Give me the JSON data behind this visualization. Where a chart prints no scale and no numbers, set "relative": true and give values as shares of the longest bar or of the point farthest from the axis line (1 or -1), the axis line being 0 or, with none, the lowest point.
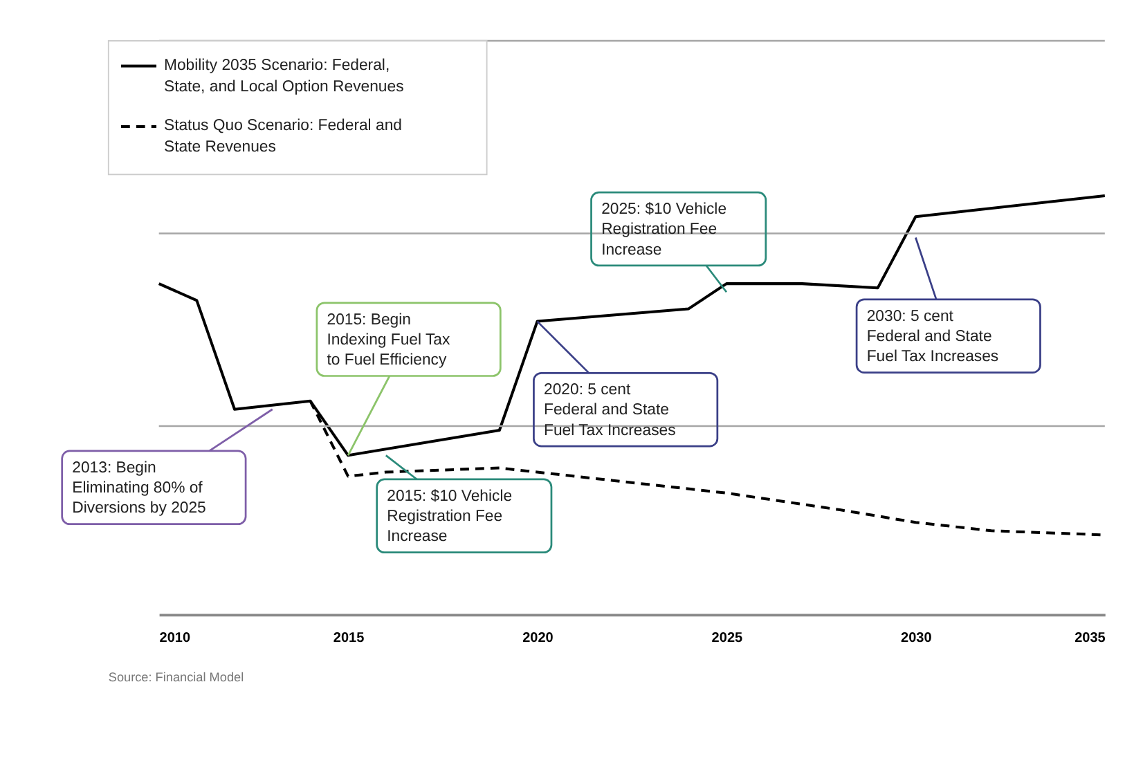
{
  "chart_data": {
    "type": "line",
    "relative": true,
    "x": [
      2010,
      2011,
      2012,
      2014,
      2015,
      2019,
      2020,
      2024,
      2025,
      2027,
      2029,
      2030,
      2035
    ],
    "xlim": [
      2010,
      2035
    ],
    "xticks": [
      2010,
      2015,
      2020,
      2025,
      2030,
      2035
    ],
    "series": [
      {
        "name": "Mobility 2035 Scenario: Federal, State, and Local Option Revenues",
        "color": "#000000",
        "line_style": "solid",
        "values": [
          0.79,
          0.75,
          0.49,
          0.51,
          0.38,
          0.44,
          0.7,
          0.73,
          0.79,
          0.79,
          0.78,
          0.95,
          1.0
        ]
      },
      {
        "name": "Status Quo Scenario: Federal and State Revenues",
        "color": "#000000",
        "line_style": "dashed",
        "x": [
          2014,
          2015,
          2016,
          2019,
          2022,
          2025,
          2028,
          2030,
          2032,
          2035
        ],
        "values": [
          0.51,
          0.33,
          0.34,
          0.35,
          0.32,
          0.29,
          0.25,
          0.22,
          0.2,
          0.19
        ]
      }
    ],
    "ref_lines": [
      {
        "axis": "y",
        "value": 0.45,
        "color": "#a6a6a6"
      },
      {
        "axis": "y",
        "value": 0.91,
        "color": "#a6a6a6"
      },
      {
        "axis": "y",
        "value": 1.37,
        "color": "#a6a6a6"
      }
    ],
    "legend": "top left",
    "grid": false,
    "annotations": [
      {
        "text": "2013: Begin Eliminating 80% of Diversions by 2025",
        "x": 2013,
        "y": 0.49
      },
      {
        "text": "2015: Begin Indexing Fuel Tax to Fuel Efficiency",
        "x": 2015,
        "y": 0.38
      },
      {
        "text": "2015: $10 Vehicle Registration Fee Increase",
        "x": 2016,
        "y": 0.38
      },
      {
        "text": "2020: 5 cent Federal and State Fuel Tax Increases",
        "x": 2020,
        "y": 0.7
      },
      {
        "text": "2025: $10 Vehicle Registration Fee Increase",
        "x": 2025,
        "y": 0.77
      },
      {
        "text": "2030: 5 cent Federal and State Fuel Tax Increases",
        "x": 2030,
        "y": 0.9
      },
      "Source: Financial Model"
    ]
  }
}
